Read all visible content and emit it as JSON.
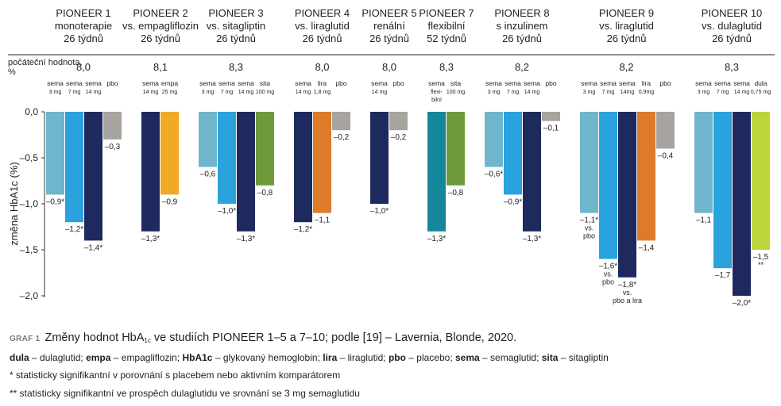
{
  "chart_data": {
    "type": "bar",
    "ylabel": "změna HbA1c (%)",
    "ylim": [
      -2.0,
      0.0
    ],
    "yticks": [
      "0,0",
      "–0,5",
      "–1,0",
      "–1,5",
      "–2,0"
    ],
    "baseline_label": "počáteční hodnota, %",
    "studies": [
      {
        "title": [
          "PIONEER 1",
          "monoterapie",
          "26 týdnů"
        ],
        "baseline": "8,0",
        "bars": [
          {
            "name": [
              "sema",
              "3 mg"
            ],
            "value": -0.9,
            "label": [
              "–0,9*"
            ],
            "color": "#6fb5cc"
          },
          {
            "name": [
              "sema",
              "7 mg"
            ],
            "value": -1.2,
            "label": [
              "–1,2*"
            ],
            "color": "#2aa2dd"
          },
          {
            "name": [
              "sema",
              "14 mg"
            ],
            "value": -1.4,
            "label": [
              "–1,4*"
            ],
            "color": "#1e2a5e"
          },
          {
            "name": [
              "pbo"
            ],
            "value": -0.3,
            "label": [
              "–0,3"
            ],
            "color": "#a7a39f"
          }
        ]
      },
      {
        "title": [
          "PIONEER 2",
          "vs. empagliflozin",
          "26 týdnů"
        ],
        "baseline": "8,1",
        "bars": [
          {
            "name": [
              "sema",
              "14 mg"
            ],
            "value": -1.3,
            "label": [
              "–1,3*"
            ],
            "color": "#1e2a5e"
          },
          {
            "name": [
              "empa",
              "25 mg"
            ],
            "value": -0.9,
            "label": [
              "–0,9"
            ],
            "color": "#f0aa25"
          }
        ]
      },
      {
        "title": [
          "PIONEER 3",
          "vs. sitagliptin",
          "26 týdnů"
        ],
        "baseline": "8,3",
        "bars": [
          {
            "name": [
              "sema",
              "3 mg"
            ],
            "value": -0.6,
            "label": [
              "–0,6"
            ],
            "color": "#6fb5cc"
          },
          {
            "name": [
              "sema",
              "7 mg"
            ],
            "value": -1.0,
            "label": [
              "–1,0*"
            ],
            "color": "#2aa2dd"
          },
          {
            "name": [
              "sema",
              "14 mg"
            ],
            "value": -1.3,
            "label": [
              "–1,3*"
            ],
            "color": "#1e2a5e"
          },
          {
            "name": [
              "sita",
              "100 mg"
            ],
            "value": -0.8,
            "label": [
              "–0,8"
            ],
            "color": "#6f9a3c"
          }
        ]
      },
      {
        "title": [
          "PIONEER 4",
          "vs. liraglutid",
          "26 týdnů"
        ],
        "baseline": "8,0",
        "bars": [
          {
            "name": [
              "sema",
              "14 mg"
            ],
            "value": -1.2,
            "label": [
              "–1,2*"
            ],
            "color": "#1e2a5e"
          },
          {
            "name": [
              "lira",
              "1,8 mg"
            ],
            "value": -1.1,
            "label": [
              "–1,1"
            ],
            "color": "#de7b2a"
          },
          {
            "name": [
              "pbo"
            ],
            "value": -0.2,
            "label": [
              "–0,2"
            ],
            "color": "#a7a39f"
          }
        ]
      },
      {
        "title": [
          "PIONEER 5",
          "renální",
          "26 týdnů"
        ],
        "baseline": "8,0",
        "bars": [
          {
            "name": [
              "sema",
              "14 mg"
            ],
            "value": -1.0,
            "label": [
              "–1,0*"
            ],
            "color": "#1e2a5e"
          },
          {
            "name": [
              "pbo"
            ],
            "value": -0.2,
            "label": [
              "–0,2"
            ],
            "color": "#a7a39f"
          }
        ]
      },
      {
        "title": [
          "PIONEER 7",
          "flexibilní",
          "52 týdnů"
        ],
        "baseline": "8,3",
        "bars": [
          {
            "name": [
              "sema",
              "flexi-",
              "bilní"
            ],
            "value": -1.3,
            "label": [
              "–1,3*"
            ],
            "color": "#16869a"
          },
          {
            "name": [
              "sita",
              "100 mg"
            ],
            "value": -0.8,
            "label": [
              "–0,8"
            ],
            "color": "#6f9a3c"
          }
        ]
      },
      {
        "title": [
          "PIONEER 8",
          "s inzulinem",
          "26 týdnů"
        ],
        "baseline": "8,2",
        "bars": [
          {
            "name": [
              "sema",
              "3 mg"
            ],
            "value": -0.6,
            "label": [
              "–0,6*"
            ],
            "color": "#6fb5cc"
          },
          {
            "name": [
              "sema",
              "7 mg"
            ],
            "value": -0.9,
            "label": [
              "–0,9*"
            ],
            "color": "#2aa2dd"
          },
          {
            "name": [
              "sema",
              "14 mg"
            ],
            "value": -1.3,
            "label": [
              "–1,3*"
            ],
            "color": "#1e2a5e"
          },
          {
            "name": [
              "pbo"
            ],
            "value": -0.1,
            "label": [
              "–0,1"
            ],
            "color": "#a7a39f"
          }
        ]
      },
      {
        "title": [
          "PIONEER 9",
          "vs. liraglutid",
          "26 týdnů"
        ],
        "baseline": "8,2",
        "bars": [
          {
            "name": [
              "sema",
              "3 mg"
            ],
            "value": -1.1,
            "label": [
              "–1,1*",
              "vs.",
              "pbo"
            ],
            "color": "#6fb5cc"
          },
          {
            "name": [
              "sema",
              "7 mg"
            ],
            "value": -1.6,
            "label": [
              "–1,6*",
              "vs.",
              "pbo"
            ],
            "color": "#2aa2dd"
          },
          {
            "name": [
              "sema",
              "14mg"
            ],
            "value": -1.8,
            "label": [
              "–1,8*",
              "vs.",
              "pbo a lira"
            ],
            "color": "#1e2a5e"
          },
          {
            "name": [
              "lira",
              "0,9mg"
            ],
            "value": -1.4,
            "label": [
              "–1,4"
            ],
            "color": "#de7b2a"
          },
          {
            "name": [
              "pbo"
            ],
            "value": -0.4,
            "label": [
              "–0,4"
            ],
            "color": "#a7a39f"
          }
        ]
      },
      {
        "title": [
          "PIONEER 10",
          "vs. dulaglutid",
          "26 týdnů"
        ],
        "baseline": "8,3",
        "bars": [
          {
            "name": [
              "sema",
              "3 mg"
            ],
            "value": -1.1,
            "label": [
              "–1,1"
            ],
            "color": "#6fb5cc"
          },
          {
            "name": [
              "sema",
              "7 mg"
            ],
            "value": -1.7,
            "label": [
              "–1,7"
            ],
            "color": "#2aa2dd"
          },
          {
            "name": [
              "sema",
              "14 mg"
            ],
            "value": -2.0,
            "label": [
              "–2,0*"
            ],
            "color": "#1e2a5e"
          },
          {
            "name": [
              "dula",
              "0,75 mg"
            ],
            "value": -1.5,
            "label": [
              "–1,5",
              "**"
            ],
            "color": "#bcd53a"
          }
        ]
      }
    ]
  },
  "caption": {
    "tag": "GRAF 1",
    "text_before": "Změny hodnot HbA",
    "sub": "1c",
    "text_after": " ve studiích PIONEER 1–5 a 7–10; podle [19] – Lavernia, Blonde, 2020."
  },
  "legend": {
    "abbrev": [
      {
        "key": "dula",
        "desc": " – dulaglutid; "
      },
      {
        "key": "empa",
        "desc": " – empagliflozin; "
      },
      {
        "key": "HbA1c",
        "desc": " – glykovaný hemoglobin; "
      },
      {
        "key": "lira",
        "desc": " – liraglutid; "
      },
      {
        "key": "pbo",
        "desc": " – placebo; "
      },
      {
        "key": "sema",
        "desc": "  – semaglutid; "
      },
      {
        "key": "sita",
        "desc": " – sitagliptin"
      }
    ],
    "note1": "* statisticky signifikantní v porovnání s placebem nebo aktivním komparátorem",
    "note2": "** statisticky signifikantní ve prospěch dulaglutidu ve srovnání se 3 mg semaglutidu"
  }
}
